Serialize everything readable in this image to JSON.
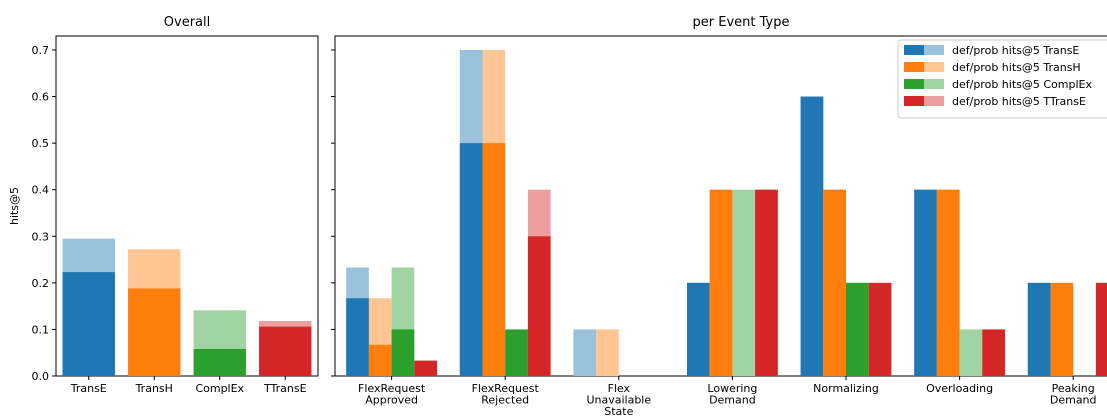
{
  "chart_data": [
    {
      "type": "bar",
      "title": "Overall",
      "ylabel": "hits@5",
      "ylim": [
        0,
        0.73
      ],
      "yticks": [
        "0.0",
        "0.1",
        "0.2",
        "0.3",
        "0.4",
        "0.5",
        "0.6",
        "0.7"
      ],
      "categories": [
        "TransE",
        "TransH",
        "ComplEx",
        "TTransE"
      ],
      "series": [
        {
          "name": "prob",
          "values": [
            0.295,
            0.272,
            0.141,
            0.118
          ]
        },
        {
          "name": "def",
          "values": [
            0.223,
            0.188,
            0.058,
            0.106
          ]
        }
      ],
      "colors": [
        "#1f77b4",
        "#ff7f0e",
        "#2ca02c",
        "#d62728"
      ]
    },
    {
      "type": "bar",
      "title": "per Event Type",
      "ylim": [
        0,
        0.73
      ],
      "categories": [
        [
          "FlexRequest",
          "Approved"
        ],
        [
          "FlexRequest",
          "Rejected"
        ],
        [
          "Flex",
          "Unavailable",
          "State"
        ],
        [
          "Lowering",
          "Demand"
        ],
        [
          "Normalizing"
        ],
        [
          "Overloading"
        ],
        [
          "Peaking",
          "Demand"
        ]
      ],
      "series": [
        {
          "name": "def/prob hits@5 TransE",
          "color": "#1f77b4",
          "def": [
            0.167,
            0.5,
            0,
            0.2,
            0.6,
            0.4,
            0.2
          ],
          "prob": [
            0.233,
            0.7,
            0.1,
            0.2,
            0.6,
            0.4,
            0.2
          ]
        },
        {
          "name": "def/prob hits@5 TransH",
          "color": "#ff7f0e",
          "def": [
            0.067,
            0.5,
            0,
            0.4,
            0.4,
            0.4,
            0.2
          ],
          "prob": [
            0.167,
            0.7,
            0.1,
            0.4,
            0.4,
            0.4,
            0.2
          ]
        },
        {
          "name": "def/prob hits@5 ComplEx",
          "color": "#2ca02c",
          "def": [
            0.1,
            0.1,
            0,
            0,
            0.2,
            0,
            0
          ],
          "prob": [
            0.233,
            0.1,
            0,
            0.4,
            0.2,
            0.1,
            0
          ]
        },
        {
          "name": "def/prob hits@5 TTransE",
          "color": "#d62728",
          "def": [
            0.033,
            0.3,
            0,
            0.4,
            0.2,
            0.1,
            0.2
          ],
          "prob": [
            0.033,
            0.4,
            0,
            0.4,
            0.2,
            0.1,
            0.2
          ]
        }
      ],
      "legend_position": "top-right"
    }
  ]
}
